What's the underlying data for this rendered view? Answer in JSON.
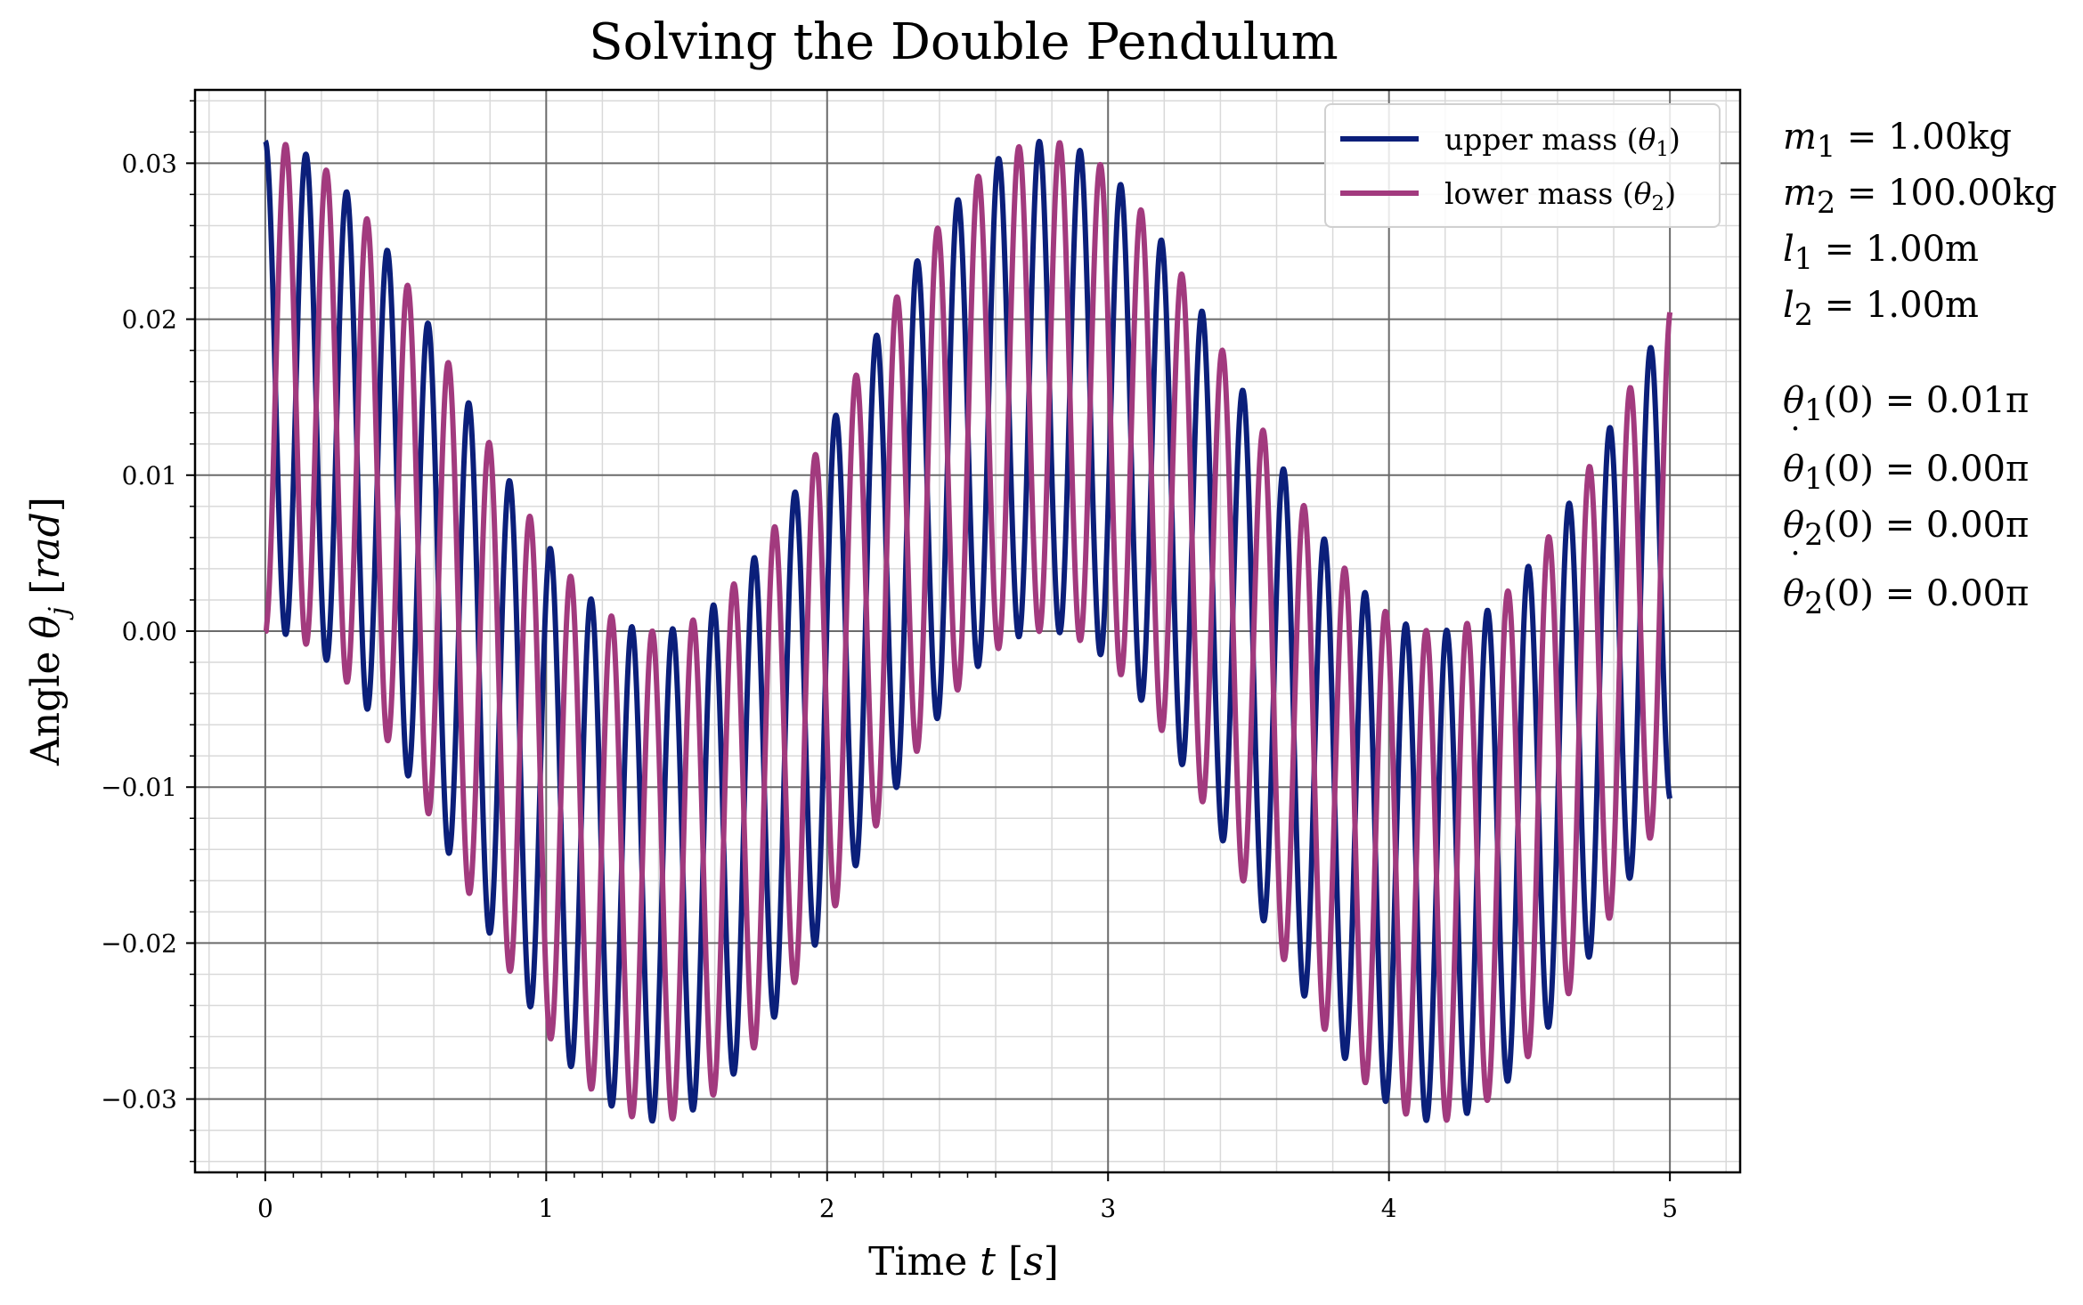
{
  "colors": {
    "theta1": "#0b1f7a",
    "theta2": "#a23a7e",
    "major_grid": "#6b6b6b",
    "minor_grid": "#d9d9d9"
  },
  "chart_data": {
    "type": "line",
    "title": "Solving the Double Pendulum",
    "xlabel": "Time t [s]",
    "ylabel": "Angle θj [rad]",
    "xlim": [
      -0.25,
      5.25
    ],
    "ylim": [
      -0.0347,
      0.0347
    ],
    "xticks": [
      0,
      1,
      2,
      3,
      4,
      5
    ],
    "xtick_labels": [
      "0",
      "1",
      "2",
      "3",
      "4",
      "5"
    ],
    "yticks": [
      0.03,
      0.02,
      0.01,
      0.0,
      -0.01,
      -0.02,
      -0.03
    ],
    "ytick_labels": [
      "0.03",
      "0.02",
      "0.01",
      "0.00",
      "−0.01",
      "−0.02",
      "−0.03"
    ],
    "grid": {
      "major": true,
      "minor": true
    },
    "legend_position": "top-right",
    "series_model": {
      "amplitude": 0.0314159,
      "fast_frequency_hz": 6.896,
      "beat_frequency_hz": 0.36,
      "description_units": "rad vs s"
    },
    "series": [
      {
        "name": "upper mass (θ1)",
        "key": "theta1",
        "x_range": [
          0,
          5
        ],
        "color": "#0b1f7a"
      },
      {
        "name": "lower mass (θ2)",
        "key": "theta2",
        "x_range": [
          0,
          5
        ],
        "color": "#a23a7e"
      }
    ]
  },
  "legend": {
    "item1_prefix": "upper mass (",
    "item1_sym": "θ",
    "item1_sub": "1",
    "item1_suffix": ")",
    "item2_prefix": "lower mass (",
    "item2_sym": "θ",
    "item2_sub": "2",
    "item2_suffix": ")"
  },
  "params": {
    "m1": {
      "sym": "m",
      "sub": "1",
      "value": " = 1.00kg"
    },
    "m2": {
      "sym": "m",
      "sub": "2",
      "value": " = 100.00kg"
    },
    "l1": {
      "sym": "l",
      "sub": "1",
      "value": " = 1.00m"
    },
    "l2": {
      "sym": "l",
      "sub": "2",
      "value": " = 1.00m"
    },
    "th1": {
      "sym": "θ",
      "sub": "1",
      "value": "(0) = 0.01π"
    },
    "dth1": {
      "sym": "θ",
      "sub": "1",
      "value": "(0) = 0.00π"
    },
    "th2": {
      "sym": "θ",
      "sub": "2",
      "value": "(0) = 0.00π"
    },
    "dth2": {
      "sym": "θ",
      "sub": "2",
      "value": "(0) = 0.00π"
    }
  }
}
